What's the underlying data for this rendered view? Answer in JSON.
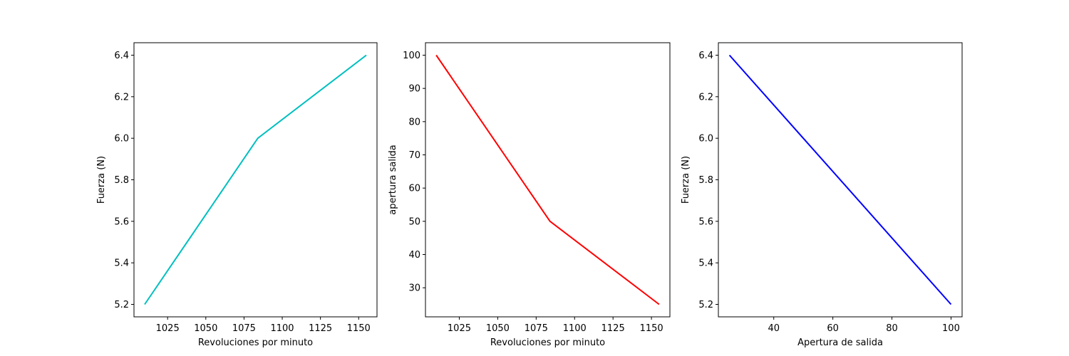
{
  "chart_data": [
    {
      "type": "line",
      "title": "",
      "xlabel": "Revoluciones por minuto",
      "ylabel": "Fuerza (N)",
      "xlim": [
        1003,
        1162
      ],
      "ylim": [
        5.14,
        6.46
      ],
      "xticks": [
        1025,
        1050,
        1075,
        1100,
        1125,
        1150
      ],
      "xtick_labels": [
        "1025",
        "1050",
        "1075",
        "1100",
        "1125",
        "1150"
      ],
      "yticks": [
        5.2,
        5.4,
        5.6,
        5.8,
        6.0,
        6.2,
        6.4
      ],
      "ytick_labels": [
        "5.2",
        "5.4",
        "5.6",
        "5.8",
        "6.0",
        "6.2",
        "6.4"
      ],
      "grid": false,
      "series": [
        {
          "color": "#00bfbf",
          "x": [
            1010,
            1084,
            1155
          ],
          "y": [
            5.2,
            6.0,
            6.4
          ]
        }
      ]
    },
    {
      "type": "line",
      "title": "",
      "xlabel": "Revoluciones por minuto",
      "ylabel": "apertura salida",
      "xlim": [
        1003,
        1162
      ],
      "ylim": [
        21.25,
        103.75
      ],
      "xticks": [
        1025,
        1050,
        1075,
        1100,
        1125,
        1150
      ],
      "xtick_labels": [
        "1025",
        "1050",
        "1075",
        "1100",
        "1125",
        "1150"
      ],
      "yticks": [
        30,
        40,
        50,
        60,
        70,
        80,
        90,
        100
      ],
      "ytick_labels": [
        "30",
        "40",
        "50",
        "60",
        "70",
        "80",
        "90",
        "100"
      ],
      "grid": false,
      "series": [
        {
          "color": "#ff0000",
          "x": [
            1010,
            1084,
            1155
          ],
          "y": [
            100,
            50,
            25
          ]
        }
      ]
    },
    {
      "type": "line",
      "title": "",
      "xlabel": "Apertura de salida",
      "ylabel": "Fuerza (N)",
      "xlim": [
        21.25,
        103.75
      ],
      "ylim": [
        5.14,
        6.46
      ],
      "xticks": [
        40,
        60,
        80,
        100
      ],
      "xtick_labels": [
        "40",
        "60",
        "80",
        "100"
      ],
      "yticks": [
        5.2,
        5.4,
        5.6,
        5.8,
        6.0,
        6.2,
        6.4
      ],
      "ytick_labels": [
        "5.2",
        "5.4",
        "5.6",
        "5.8",
        "6.0",
        "6.2",
        "6.4"
      ],
      "grid": false,
      "series": [
        {
          "color": "#0000ff",
          "x": [
            25,
            50,
            100
          ],
          "y": [
            6.4,
            6.0,
            5.2
          ]
        }
      ]
    }
  ]
}
